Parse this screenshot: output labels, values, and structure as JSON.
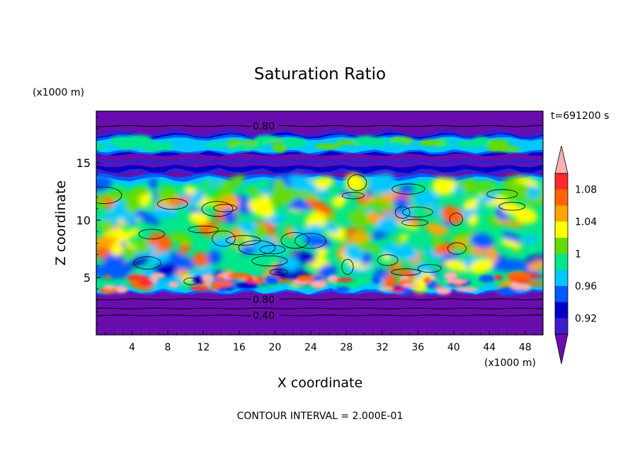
{
  "chart_data": {
    "type": "heatmap",
    "title": "Saturation Ratio",
    "xlabel": "X coordinate",
    "ylabel": "Z coordinate",
    "x_unit": "(x1000 m)",
    "y_unit": "(x1000 m)",
    "time_label": "t=691200 s",
    "footer": "CONTOUR INTERVAL = 2.000E-01",
    "xlim": [
      0,
      50
    ],
    "ylim": [
      0,
      19.5
    ],
    "x_ticks": [
      4,
      8,
      12,
      16,
      20,
      24,
      28,
      32,
      36,
      40,
      44,
      48
    ],
    "y_ticks": [
      5,
      10,
      15
    ],
    "colorbar": {
      "levels": [
        0.9,
        0.92,
        0.94,
        0.96,
        0.98,
        1.0,
        1.02,
        1.04,
        1.06,
        1.08,
        1.1
      ],
      "labels": [
        "0.92",
        "0.96",
        "1",
        "1.04",
        "1.08"
      ],
      "colors": [
        "#6a0dad",
        "#3c1ec8",
        "#0000cd",
        "#005aff",
        "#00c8ff",
        "#00e68c",
        "#64dc00",
        "#ffff00",
        "#ffa500",
        "#ff6400",
        "#ff2a2a",
        "#ffb0b0"
      ],
      "extend": "both"
    },
    "contour_labels": [
      {
        "text": "0.80",
        "x": 17.5,
        "z": 18.2
      },
      {
        "text": "0.80",
        "x": 17.5,
        "z": 3.1
      },
      {
        "text": "0.40",
        "x": 17.5,
        "z": 1.7
      }
    ]
  }
}
